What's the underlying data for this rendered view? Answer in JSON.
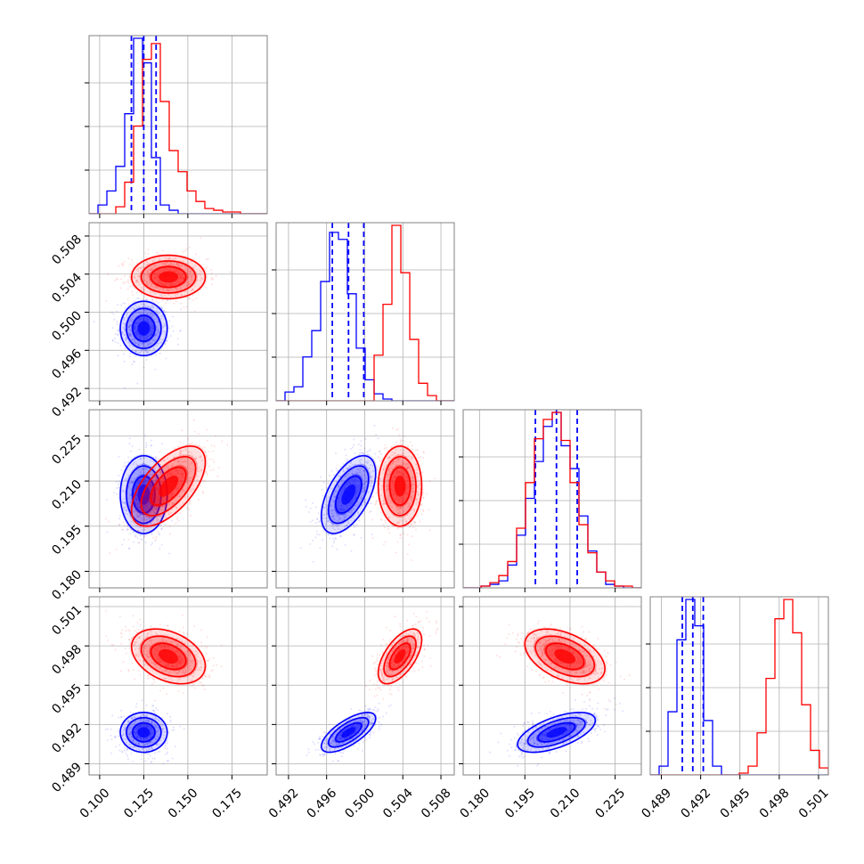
{
  "chart_data": {
    "type": "corner",
    "grid": true,
    "colors": {
      "blue_series": "#0000ff",
      "red_series": "#ff0000",
      "frame": "#808080",
      "grid": "#b0b0b0"
    },
    "params": [
      {
        "id": "p1",
        "range": [
          0.094,
          0.195
        ],
        "ticks": [
          "0.100",
          "0.125",
          "0.150",
          "0.175"
        ]
      },
      {
        "id": "p2",
        "range": [
          0.4907,
          0.5094
        ],
        "ticks": [
          "0.492",
          "0.496",
          "0.500",
          "0.504",
          "0.508"
        ]
      },
      {
        "id": "p3",
        "range": [
          0.1745,
          0.2337
        ],
        "ticks": [
          "0.180",
          "0.195",
          "0.210",
          "0.225"
        ]
      },
      {
        "id": "p4",
        "range": [
          0.48815,
          0.50175
        ],
        "ticks": [
          "0.489",
          "0.492",
          "0.495",
          "0.498",
          "0.501"
        ]
      }
    ],
    "series": [
      {
        "color_key": "blue_series",
        "mean": [
          0.125,
          0.4983,
          0.2055,
          0.4914
        ],
        "sd": [
          0.007,
          0.0015,
          0.0068,
          0.0008
        ],
        "corr": {
          "0-1": 0.0,
          "0-2": 0.0,
          "0-3": 0.0,
          "1-2": 0.55,
          "1-3": 0.7,
          "2-3": 0.6
        },
        "quantile_lines": [
          [
            0.118,
            0.125,
            0.132
          ],
          [
            0.4966,
            0.4983,
            0.4999
          ],
          [
            0.1985,
            0.2055,
            0.2124
          ],
          [
            0.4906,
            0.4914,
            0.4922
          ]
        ],
        "histograms": [
          {
            "edges_start": 0.094,
            "bin_width": 0.00505,
            "counts": [
              0,
              0.05,
              0.13,
              0.27,
              0.57,
              1.0,
              0.86,
              0.32,
              0.05,
              0.02,
              0,
              0,
              0,
              0,
              0,
              0,
              0,
              0,
              0,
              0
            ]
          },
          {
            "edges_start": 0.4907,
            "bin_width": 0.000935,
            "counts": [
              0,
              0.05,
              0.08,
              0.25,
              0.4,
              0.68,
              0.96,
              0.92,
              0.61,
              0.3,
              0.12,
              0.04,
              0.01,
              0,
              0,
              0,
              0,
              0,
              0,
              0
            ]
          },
          {
            "edges_start": 0.1745,
            "bin_width": 0.00296,
            "counts": [
              0,
              0,
              0.01,
              0.02,
              0.04,
              0.13,
              0.3,
              0.51,
              0.72,
              0.92,
              1.0,
              0.81,
              0.68,
              0.41,
              0.21,
              0.09,
              0.02,
              0.01,
              0,
              0
            ]
          },
          {
            "edges_start": 0.48815,
            "bin_width": 0.00068,
            "counts": [
              0,
              0.05,
              0.36,
              0.77,
              1.0,
              0.85,
              0.31,
              0.05,
              0,
              0,
              0,
              0,
              0,
              0,
              0,
              0,
              0,
              0,
              0,
              0
            ]
          }
        ]
      },
      {
        "color_key": "red_series",
        "mean": [
          0.139,
          0.5037,
          0.2083,
          0.4972
        ],
        "sd": [
          0.011,
          0.0012,
          0.007,
          0.0011
        ],
        "corr": {
          "0-1": 0.0,
          "0-2": 0.6,
          "0-3": -0.35,
          "1-2": 0.0,
          "1-3": 0.6,
          "2-3": -0.45
        },
        "histograms": [
          {
            "edges_start": 0.094,
            "bin_width": 0.00505,
            "counts": [
              0,
              0,
              0,
              0.04,
              0.18,
              0.5,
              0.88,
              0.97,
              0.64,
              0.36,
              0.24,
              0.13,
              0.07,
              0.03,
              0.02,
              0.01,
              0.01,
              0,
              0,
              0
            ]
          },
          {
            "edges_start": 0.4907,
            "bin_width": 0.000935,
            "counts": [
              0,
              0,
              0,
              0,
              0,
              0,
              0,
              0,
              0,
              0,
              0,
              0.26,
              0.55,
              1.0,
              0.73,
              0.35,
              0.1,
              0.03,
              0,
              0
            ]
          },
          {
            "edges_start": 0.1745,
            "bin_width": 0.00296,
            "counts": [
              0,
              0,
              0.01,
              0.03,
              0.07,
              0.15,
              0.34,
              0.6,
              0.85,
              0.96,
              1.0,
              0.84,
              0.6,
              0.36,
              0.2,
              0.09,
              0.04,
              0.01,
              0.01,
              0
            ]
          },
          {
            "edges_start": 0.48815,
            "bin_width": 0.00068,
            "counts": [
              0,
              0,
              0,
              0,
              0,
              0,
              0,
              0,
              0,
              0,
              0.01,
              0.05,
              0.24,
              0.55,
              0.89,
              1.0,
              0.81,
              0.4,
              0.14,
              0.04
            ]
          }
        ]
      }
    ]
  }
}
